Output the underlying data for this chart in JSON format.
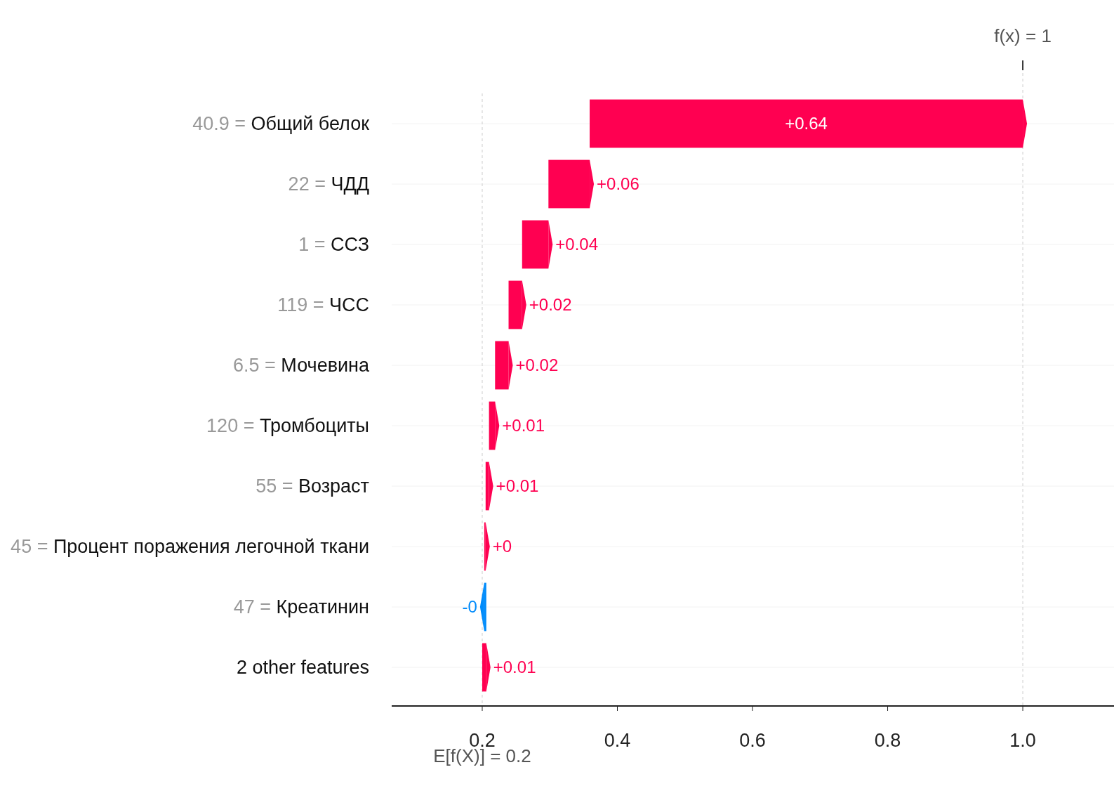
{
  "chart_data": {
    "type": "bar",
    "orientation": "horizontal",
    "categories": [
      "40.9 = Общий белок",
      "22 = ЧДД",
      "1 = ССЗ",
      "119 = ЧСС",
      "6.5 = Мочевина",
      "120 = Тромбоциты",
      "55 = Возраст",
      "45 = Процент поражения легочной ткани",
      "47 = Креатинин",
      "2 other features"
    ],
    "values": [
      0.641,
      0.061,
      0.039,
      0.02,
      0.02,
      0.009,
      0.005,
      0.002,
      -0.003,
      0.006
    ],
    "base": [
      0.359,
      0.298,
      0.259,
      0.239,
      0.219,
      0.21,
      0.205,
      0.203,
      0.206,
      0.2
    ],
    "colors": [
      "#ff0051",
      "#ff0051",
      "#ff0051",
      "#ff0051",
      "#ff0051",
      "#ff0051",
      "#ff0051",
      "#ff0051",
      "#008bfb",
      "#ff0051"
    ],
    "value_labels": [
      "+0.64",
      "+0.06",
      "+0.04",
      "+0.02",
      "+0.02",
      "+0.01",
      "+0.01",
      "+0",
      "-0",
      "+0.01"
    ],
    "xlim": [
      0.066,
      1.135
    ],
    "xticks": [
      0.2,
      0.4,
      0.6,
      0.8,
      {
        "value": 1,
        "label": "1.0"
      }
    ],
    "ref_lines": [
      {
        "axis": "x",
        "value": 1,
        "label": "f(x) = 1",
        "color": "#cccccc",
        "line_style": "dashed"
      },
      {
        "axis": "x",
        "value": 0.2,
        "label": "E[f(X)] = 0.2",
        "color": "#cccccc",
        "line_style": "dashed"
      }
    ],
    "grid": "y"
  }
}
